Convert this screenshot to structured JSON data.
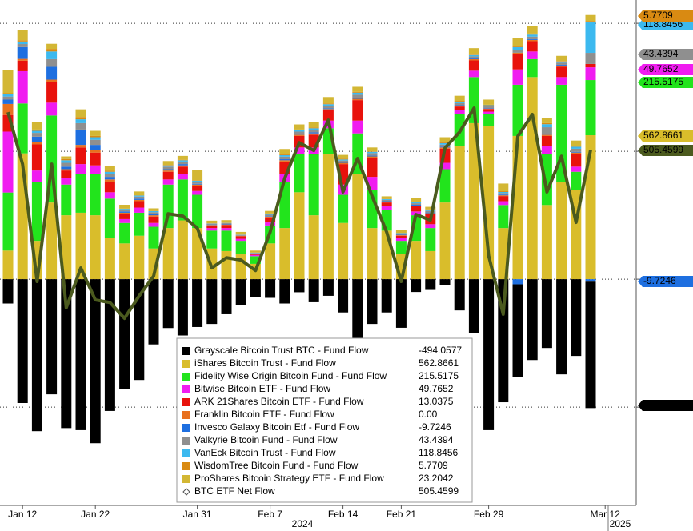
{
  "chart_data": {
    "type": "bar",
    "stacked": true,
    "categories": [
      null,
      "Jan 12",
      null,
      null,
      null,
      null,
      "Jan 22",
      null,
      null,
      null,
      null,
      null,
      null,
      "Jan 31",
      null,
      null,
      null,
      null,
      "Feb 7",
      null,
      null,
      null,
      null,
      "Feb 14",
      null,
      null,
      null,
      "Feb 21",
      null,
      null,
      null,
      null,
      null,
      "Feb 29",
      null,
      null,
      null,
      null,
      null,
      null,
      null,
      "Mar 12"
    ],
    "years": [
      "2024",
      "2025"
    ],
    "ylim": [
      -884,
      1091
    ],
    "yticks": [
      -500,
      0,
      500,
      1000
    ],
    "grid": true,
    "series": [
      {
        "name": "Grayscale Bitcoin Trust BTC - Fund Flow",
        "color": "#000000",
        "values": [
          -95,
          -484,
          -594,
          -450,
          -582,
          -590,
          -641,
          -515,
          -429,
          -394,
          -255,
          -191,
          -220,
          -187,
          -175,
          -137,
          -100,
          -70,
          -73,
          -95,
          -51,
          -90,
          -65,
          -130,
          -260,
          -175,
          -130,
          -190,
          -50,
          -42,
          -22,
          -122,
          -209,
          -590,
          -481,
          -362,
          -316,
          -269,
          -372,
          -300,
          -494.0577,
          null
        ]
      },
      {
        "name": "iShares Bitcoin Trust - Fund Flow",
        "color": "#d9bd2b",
        "values": [
          112,
          492,
          150,
          300,
          250,
          260,
          250,
          160,
          140,
          170,
          120,
          200,
          230,
          200,
          120,
          110,
          100,
          60,
          140,
          200,
          340,
          250,
          490,
          220,
          410,
          200,
          190,
          100,
          150,
          110,
          300,
          520,
          610,
          600,
          200,
          560,
          790,
          290,
          380,
          350,
          562.8661,
          null
        ]
      },
      {
        "name": "Fidelity Wise Origin Bitcoin Fund - Fund Flow",
        "color": "#22e41c",
        "values": [
          227,
          195,
          230,
          340,
          120,
          150,
          160,
          155,
          80,
          90,
          85,
          170,
          160,
          130,
          70,
          80,
          50,
          30,
          70,
          180,
          150,
          240,
          100,
          110,
          160,
          150,
          80,
          50,
          100,
          90,
          130,
          125,
          180,
          45,
          90,
          200,
          70,
          200,
          380,
          70,
          215.5175,
          null
        ]
      },
      {
        "name": "Bitwise Bitcoin ETF - Fund Flow",
        "color": "#f01cf0",
        "values": [
          238,
          126,
          45,
          50,
          25,
          40,
          35,
          25,
          15,
          20,
          15,
          20,
          20,
          15,
          10,
          10,
          8,
          5,
          12,
          30,
          25,
          25,
          30,
          40,
          50,
          50,
          15,
          10,
          15,
          15,
          25,
          15,
          25,
          10,
          15,
          60,
          30,
          30,
          30,
          20,
          49.7652,
          null
        ]
      },
      {
        "name": "ARK 21Shares Bitcoin ETF - Fund Flow",
        "color": "#e8120c",
        "values": [
          65,
          41,
          102,
          80,
          30,
          65,
          50,
          40,
          20,
          25,
          25,
          30,
          30,
          20,
          10,
          12,
          10,
          4,
          20,
          50,
          45,
          50,
          40,
          80,
          80,
          75,
          15,
          10,
          20,
          40,
          55,
          15,
          40,
          10,
          20,
          60,
          40,
          40,
          40,
          50,
          13.0375,
          null
        ]
      },
      {
        "name": "Franklin Bitcoin ETF - Fund Flow",
        "color": "#e8701e",
        "values": [
          43,
          7,
          10,
          10,
          5,
          10,
          10,
          10,
          5,
          5,
          5,
          5,
          5,
          5,
          2,
          2,
          2,
          1,
          3,
          5,
          5,
          5,
          5,
          5,
          5,
          5,
          3,
          2,
          3,
          3,
          5,
          3,
          5,
          2,
          3,
          5,
          5,
          5,
          5,
          5,
          0,
          null
        ],
        "value_labels": [
          null,
          null,
          null,
          null,
          null,
          null,
          null,
          null,
          null,
          null,
          null,
          null,
          null,
          null,
          null,
          null,
          null,
          null,
          null,
          null,
          null,
          null,
          null,
          null,
          null,
          null,
          null,
          null,
          null,
          null,
          null,
          null,
          null,
          null,
          null,
          null,
          null,
          null,
          null,
          null,
          "0.00",
          null
        ]
      },
      {
        "name": "Invesco Galaxy Bitcoin Etf - Fund Flow",
        "color": "#1e6fe0",
        "values": [
          17,
          46,
          20,
          50,
          10,
          60,
          20,
          10,
          5,
          5,
          5,
          5,
          5,
          3,
          2,
          2,
          1,
          1,
          2,
          4,
          4,
          4,
          3,
          3,
          4,
          3,
          2,
          2,
          3,
          3,
          3,
          2,
          3,
          2,
          3,
          -20,
          3,
          4,
          3,
          3,
          -9.7246,
          null
        ]
      },
      {
        "name": "Valkyrie Bitcoin Fund - Fund Flow",
        "color": "#8f8f8f",
        "values": [
          12,
          12,
          15,
          30,
          15,
          25,
          20,
          12,
          6,
          8,
          7,
          10,
          10,
          8,
          3,
          3,
          2,
          2,
          5,
          10,
          8,
          10,
          10,
          6,
          12,
          10,
          5,
          4,
          6,
          6,
          8,
          8,
          8,
          7,
          6,
          10,
          10,
          25,
          8,
          12,
          43.4394,
          null
        ]
      },
      {
        "name": "VanEck Bitcoin Trust - Fund Flow",
        "color": "#3cb9ef",
        "values": [
          10,
          10,
          8,
          30,
          10,
          15,
          10,
          8,
          4,
          4,
          4,
          5,
          5,
          4,
          1,
          1,
          1,
          1,
          3,
          6,
          5,
          6,
          6,
          4,
          8,
          5,
          3,
          2,
          4,
          4,
          6,
          6,
          5,
          4,
          4,
          12,
          8,
          12,
          5,
          8,
          118.8456,
          null
        ]
      },
      {
        "name": "WisdomTree Bitcoin Fund - Fund Flow",
        "color": "#d98a12",
        "values": [
          3,
          5,
          5,
          10,
          5,
          9,
          5,
          4,
          1,
          1,
          1,
          2,
          2,
          2,
          1,
          1,
          1,
          0,
          2,
          4,
          3,
          3,
          3,
          3,
          3,
          2,
          1,
          1,
          2,
          2,
          3,
          3,
          2,
          2,
          3,
          4,
          4,
          4,
          2,
          4,
          5.7709,
          null
        ]
      },
      {
        "name": "ProShares Bitcoin Strategy ETF - Fund Flow",
        "color": "#d3b734",
        "values": [
          90,
          40,
          30,
          20,
          10,
          30,
          20,
          20,
          15,
          15,
          10,
          15,
          15,
          40,
          10,
          10,
          10,
          8,
          10,
          20,
          20,
          20,
          25,
          15,
          20,
          15,
          10,
          10,
          15,
          10,
          20,
          20,
          25,
          20,
          30,
          30,
          30,
          20,
          20,
          20,
          23.2042,
          null
        ]
      },
      {
        "name": "BTC ETF Net Flow",
        "color": "#4b5a1e",
        "type": "line",
        "values": [
          653,
          450,
          -9,
          450,
          -112,
          44,
          -81,
          -91,
          -153,
          -66,
          12,
          256,
          247,
          200,
          44,
          84,
          75,
          34,
          184,
          394,
          534,
          503,
          622,
          341,
          472,
          325,
          184,
          -9,
          253,
          231,
          513,
          575,
          669,
          92,
          -137,
          559,
          644,
          341,
          481,
          222,
          505.4599,
          null
        ]
      }
    ]
  }
}
